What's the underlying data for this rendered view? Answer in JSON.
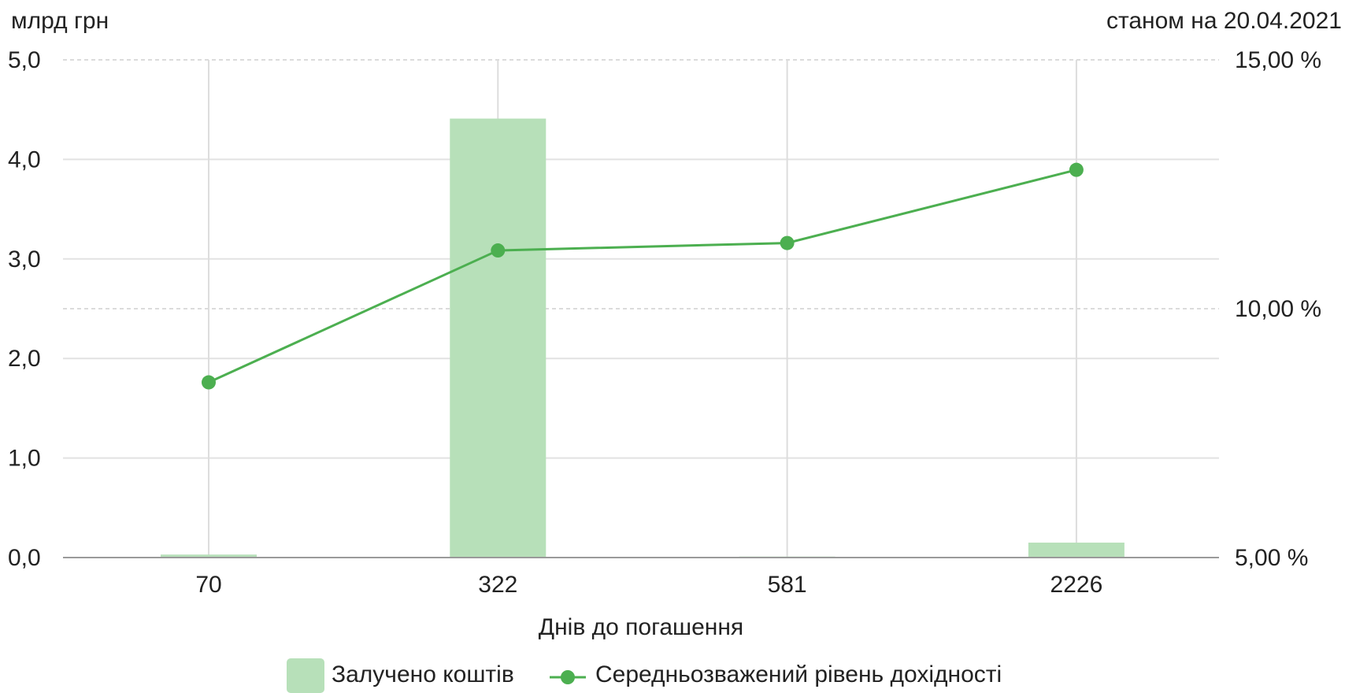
{
  "chart_data": {
    "type": "bar",
    "unit_label": "млрд грн",
    "date_label": "станом на 20.04.2021",
    "xlabel": "Днів до погашення",
    "categories": [
      "70",
      "322",
      "581",
      "2226"
    ],
    "series": [
      {
        "name": "Залучено коштів",
        "type": "bar",
        "axis": "left",
        "color": "#b7e0b9",
        "values": [
          0.03,
          4.41,
          0.01,
          0.15
        ]
      },
      {
        "name": "Середньозважений рівень дохідності",
        "type": "line",
        "axis": "right",
        "color": "#4caf50",
        "values": [
          8.52,
          11.17,
          11.32,
          12.79
        ]
      }
    ],
    "y_left": {
      "min": 0,
      "max": 5,
      "ticks": [
        0,
        1,
        2,
        3,
        4,
        5
      ],
      "tick_labels": [
        "0,0",
        "1,0",
        "2,0",
        "3,0",
        "4,0",
        "5,0"
      ]
    },
    "y_right": {
      "min": 5,
      "max": 15,
      "ticks": [
        5,
        10,
        15
      ],
      "tick_labels": [
        "5,00 %",
        "10,00 %",
        "15,00 %"
      ]
    },
    "grid": true,
    "legend_position": "bottom"
  }
}
